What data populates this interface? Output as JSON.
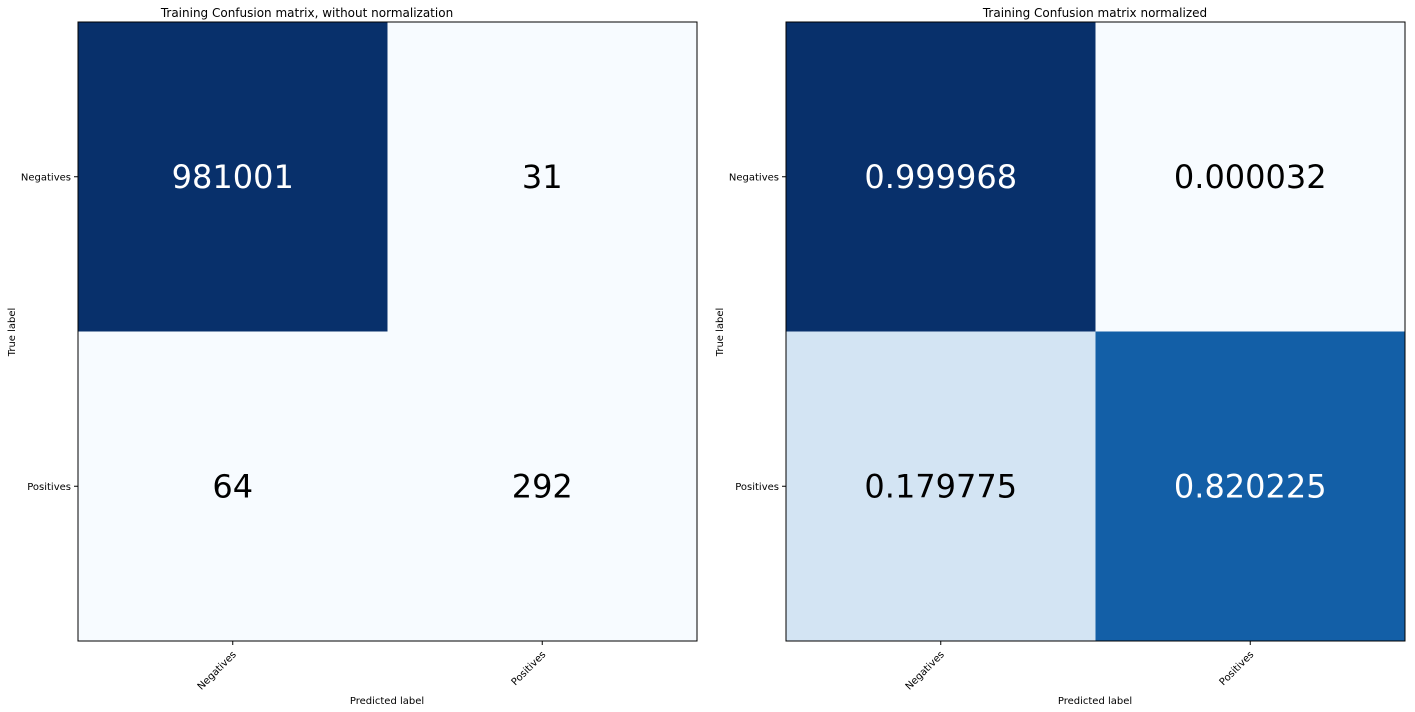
{
  "chart_data": [
    {
      "type": "heatmap",
      "title": "Training Confusion matrix, without normalization",
      "xlabel": "Predicted label",
      "ylabel": "True label",
      "x_tick_labels": [
        "Negatives",
        "Positives"
      ],
      "y_tick_labels": [
        "Negatives",
        "Positives"
      ],
      "values": [
        [
          981001,
          31
        ],
        [
          64,
          292
        ]
      ],
      "value_labels": [
        [
          "981001",
          "31"
        ],
        [
          "64",
          "292"
        ]
      ],
      "colormap": "Blues",
      "grid": false
    },
    {
      "type": "heatmap",
      "title": "Training Confusion matrix normalized",
      "xlabel": "Predicted label",
      "ylabel": "True label",
      "x_tick_labels": [
        "Negatives",
        "Positives"
      ],
      "y_tick_labels": [
        "Negatives",
        "Positives"
      ],
      "values": [
        [
          0.999968,
          3.2e-05
        ],
        [
          0.179775,
          0.820225
        ]
      ],
      "value_labels": [
        [
          "0.999968",
          "0.000032"
        ],
        [
          "0.179775",
          "0.820225"
        ]
      ],
      "colormap": "Blues",
      "grid": false
    }
  ]
}
